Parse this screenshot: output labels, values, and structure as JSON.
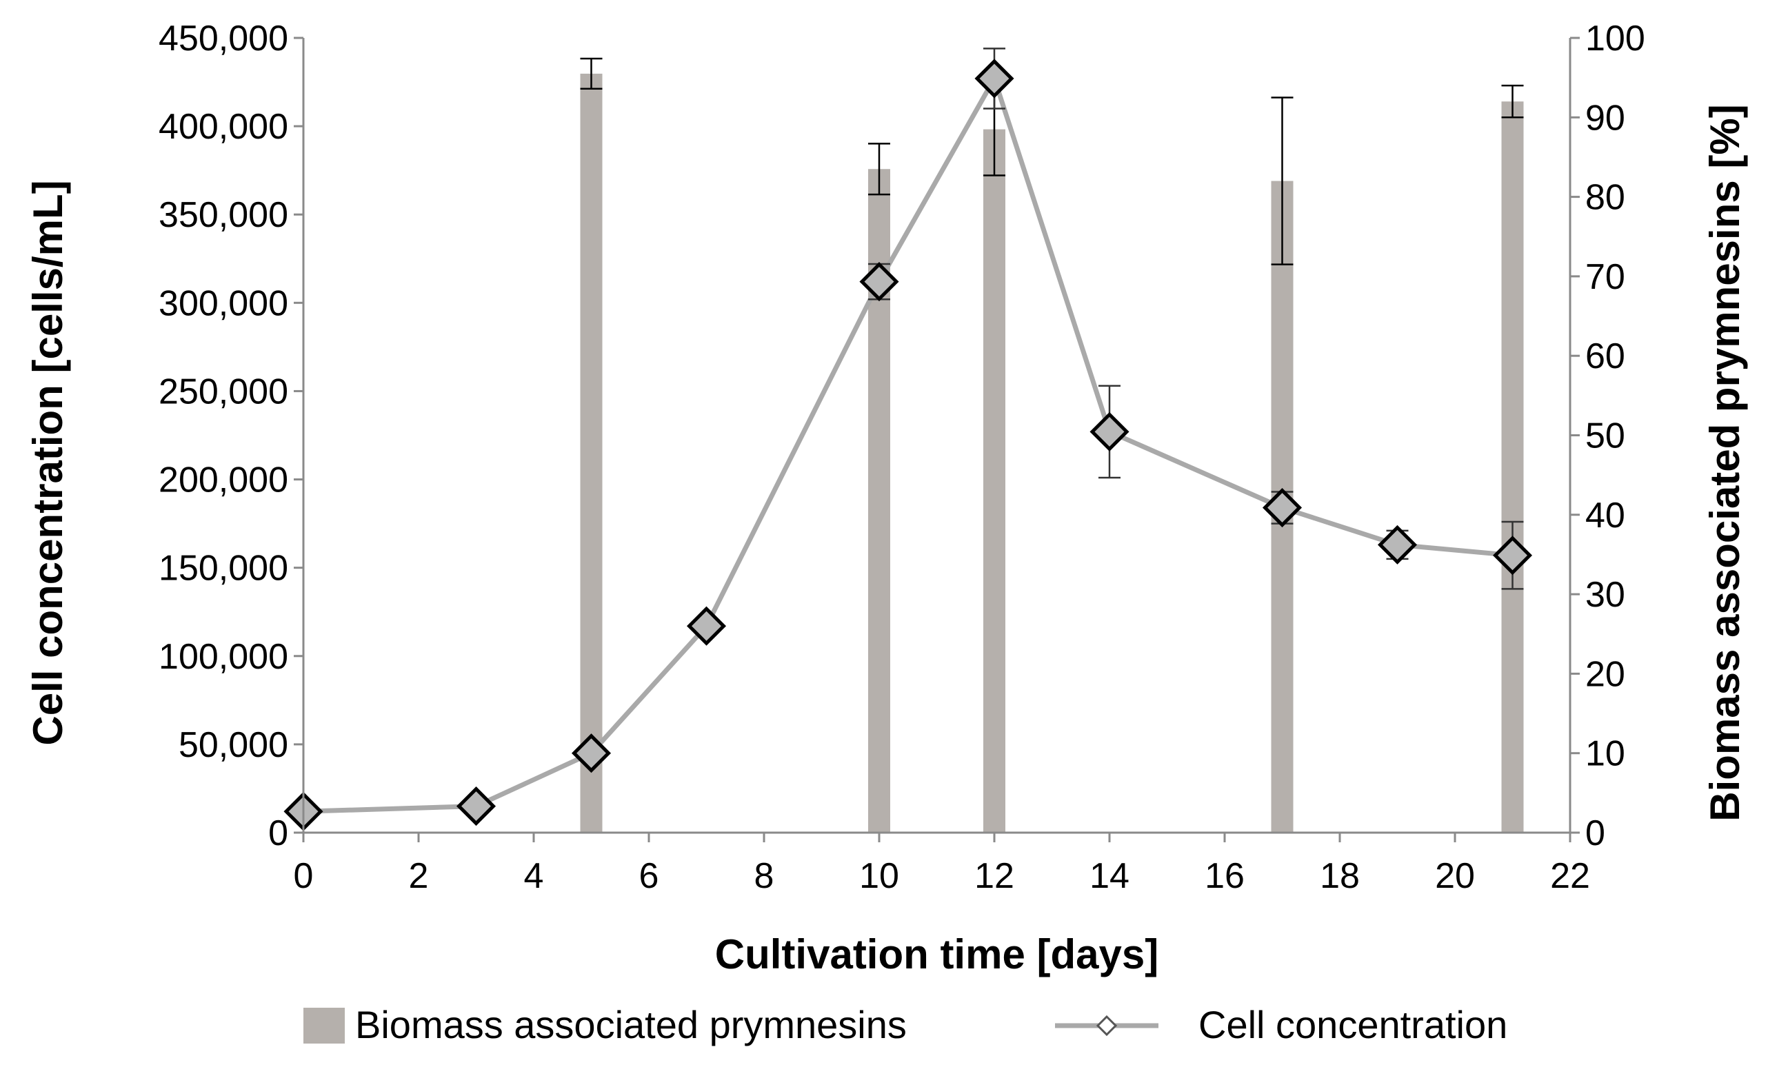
{
  "chart_data": {
    "type": "bar+line",
    "title": "",
    "xlabel": "Cultivation time [days]",
    "ylabel_left": "Cell concentration [cells/mL]",
    "ylabel_right": "Biomass associated prymnesins [%]",
    "xlim": [
      0,
      22
    ],
    "ylim_left": [
      0,
      450000
    ],
    "ylim_right": [
      0,
      100
    ],
    "x_ticks": [
      "0",
      "2",
      "4",
      "6",
      "8",
      "10",
      "12",
      "14",
      "16",
      "18",
      "20",
      "22"
    ],
    "y_left_ticks": [
      "0",
      "50,000",
      "100,000",
      "150,000",
      "200,000",
      "250,000",
      "300,000",
      "350,000",
      "400,000",
      "450,000"
    ],
    "y_right_ticks": [
      "0",
      "10",
      "20",
      "30",
      "40",
      "50",
      "60",
      "70",
      "80",
      "90",
      "100"
    ],
    "colors": {
      "bar": "#b5b0ac",
      "line": "#a9a9a9",
      "marker_fill": "#b8b8b8",
      "marker_edge": "#000000"
    },
    "series": [
      {
        "name": "Biomass associated prymnesins",
        "type": "bar",
        "axis": "right",
        "x": [
          5,
          10,
          12,
          17,
          21
        ],
        "values": [
          95.5,
          83.5,
          88.5,
          82,
          92
        ],
        "error": [
          1.9,
          3.2,
          5.8,
          10.5,
          2.0
        ]
      },
      {
        "name": "Cell concentration",
        "type": "line",
        "axis": "left",
        "x": [
          0,
          3,
          5,
          7,
          10,
          12,
          14,
          17,
          19,
          21
        ],
        "values": [
          12000,
          15000,
          45000,
          117000,
          312000,
          427000,
          227000,
          184000,
          163000,
          157000
        ],
        "error": [
          0,
          0,
          0,
          0,
          10000,
          17000,
          26000,
          9000,
          8000,
          19000
        ]
      }
    ],
    "legend": {
      "position": "bottom",
      "items": [
        "Biomass associated prymnesins",
        "Cell concentration"
      ]
    }
  }
}
